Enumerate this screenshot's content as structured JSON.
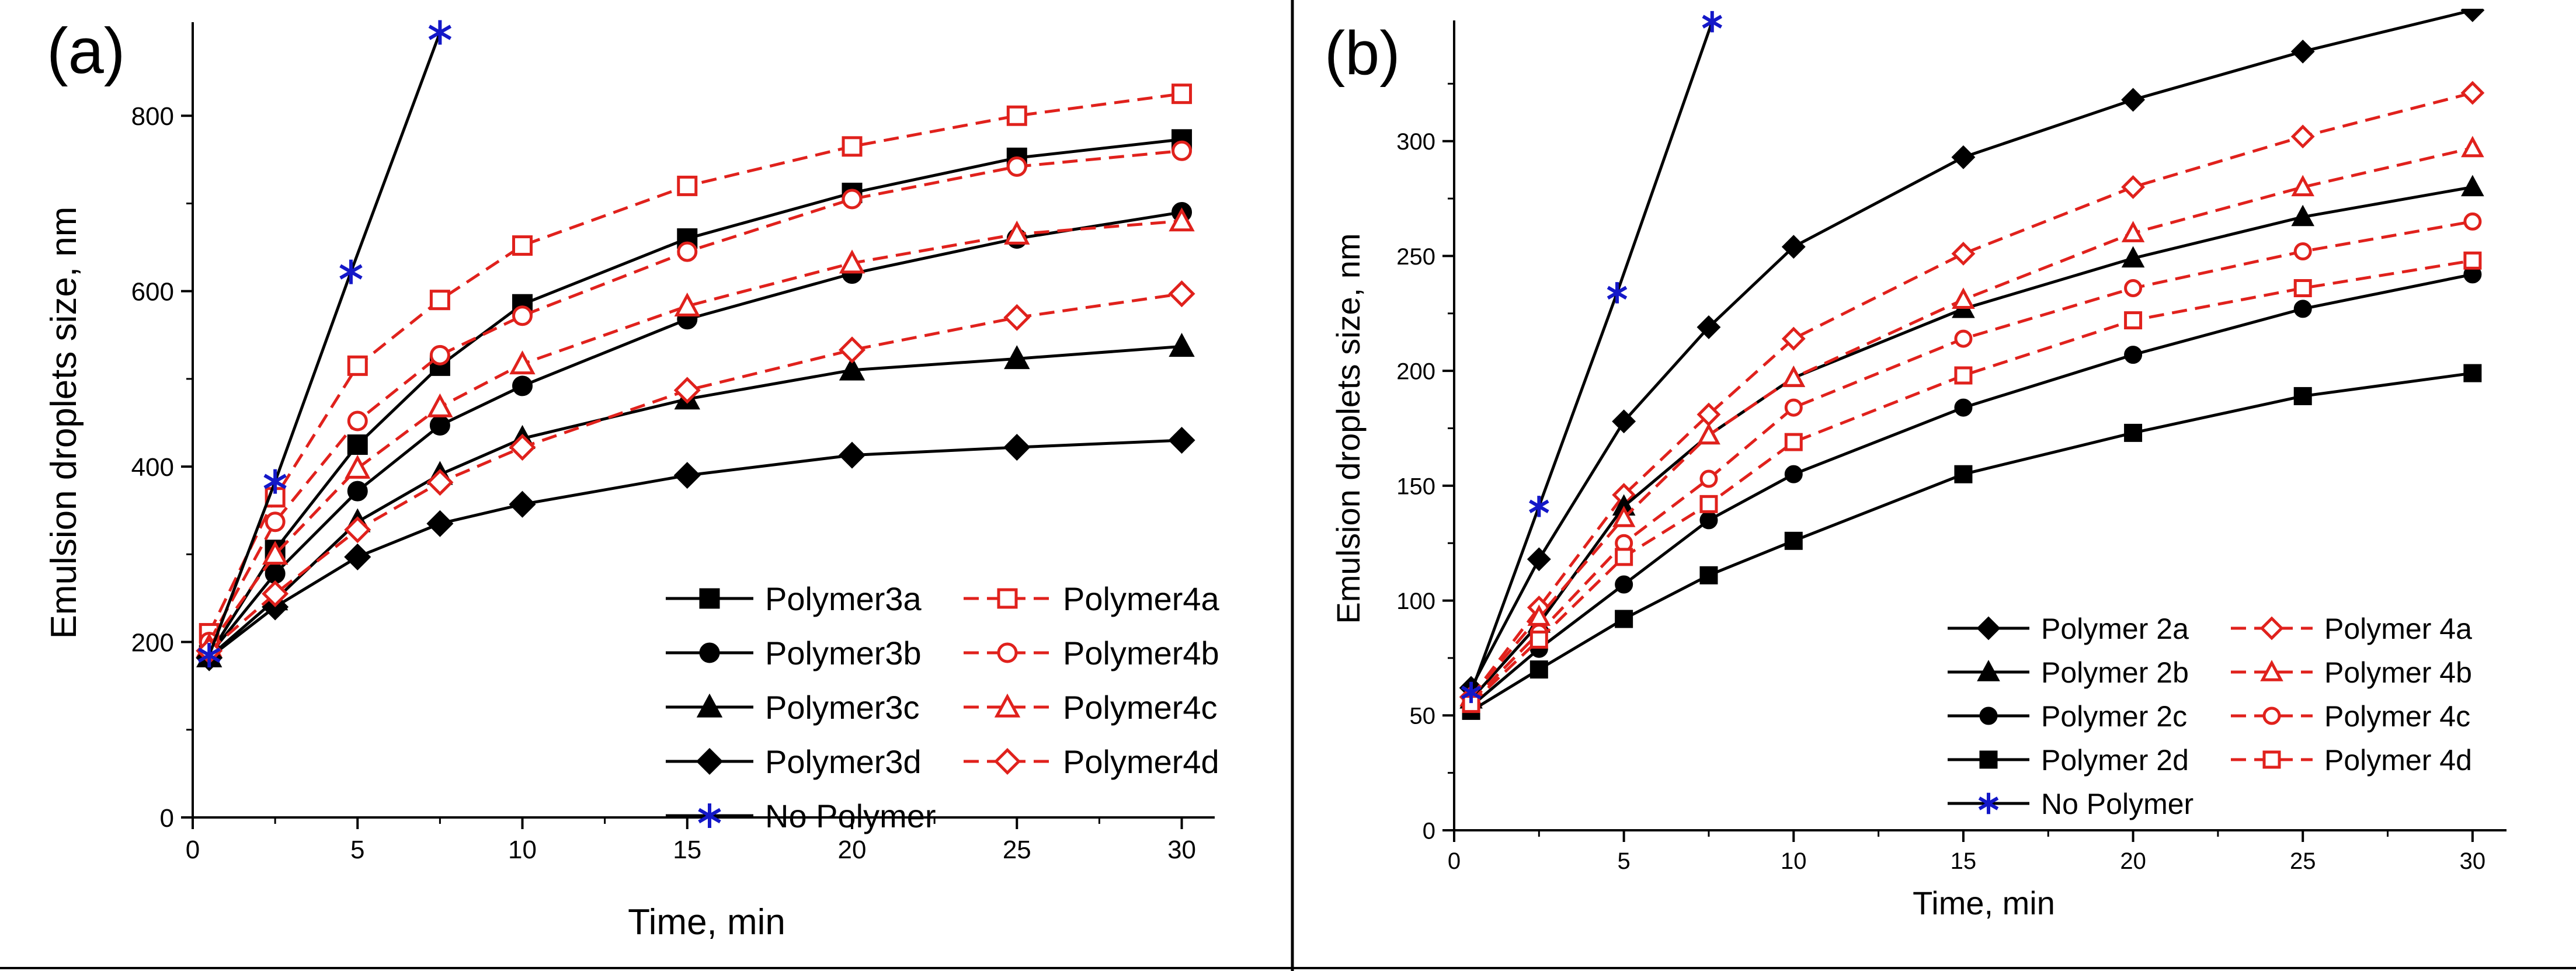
{
  "colors": {
    "black": "#000000",
    "red": "#e0211c",
    "blue": "#1418c8"
  },
  "chart_data": [
    {
      "type": "line",
      "panel_label": "(a)",
      "title": "",
      "xlabel": "Time, min",
      "ylabel": "Emulsion droplets size, nm",
      "xlim": [
        0,
        31
      ],
      "ylim": [
        0,
        900
      ],
      "xticks": [
        0,
        5,
        10,
        15,
        20,
        25,
        30
      ],
      "yticks": [
        0,
        200,
        400,
        600,
        800
      ],
      "legend_position": "bottom-right",
      "series": [
        {
          "name": "Polymer3a",
          "color": "black",
          "dash": false,
          "marker": "square-filled",
          "x": [
            0.5,
            2.5,
            5,
            7.5,
            10,
            15,
            20,
            25,
            30
          ],
          "y": [
            185,
            305,
            425,
            515,
            585,
            660,
            712,
            752,
            773
          ]
        },
        {
          "name": "Polymer4a",
          "color": "red",
          "dash": true,
          "marker": "square-open",
          "x": [
            0.5,
            2.5,
            5,
            7.5,
            10,
            15,
            20,
            25,
            30
          ],
          "y": [
            210,
            365,
            515,
            590,
            652,
            720,
            765,
            800,
            825
          ]
        },
        {
          "name": "Polymer3b",
          "color": "black",
          "dash": false,
          "marker": "circle-filled",
          "x": [
            0.5,
            2.5,
            5,
            7.5,
            10,
            15,
            20,
            25,
            30
          ],
          "y": [
            185,
            278,
            372,
            447,
            492,
            568,
            620,
            660,
            690
          ]
        },
        {
          "name": "Polymer4b",
          "color": "red",
          "dash": true,
          "marker": "circle-open",
          "x": [
            0.5,
            2.5,
            5,
            7.5,
            10,
            15,
            20,
            25,
            30
          ],
          "y": [
            200,
            337,
            452,
            527,
            572,
            645,
            705,
            742,
            760
          ]
        },
        {
          "name": "Polymer3c",
          "color": "black",
          "dash": false,
          "marker": "triangle-filled",
          "x": [
            0.5,
            2.5,
            5,
            7.5,
            10,
            15,
            20,
            25,
            30
          ],
          "y": [
            183,
            248,
            337,
            391,
            432,
            477,
            510,
            523,
            537
          ]
        },
        {
          "name": "Polymer4c",
          "color": "red",
          "dash": true,
          "marker": "triangle-open",
          "x": [
            0.5,
            2.5,
            5,
            7.5,
            10,
            15,
            20,
            25,
            30
          ],
          "y": [
            195,
            300,
            398,
            468,
            517,
            583,
            632,
            665,
            680
          ]
        },
        {
          "name": "Polymer3d",
          "color": "black",
          "dash": false,
          "marker": "diamond-filled",
          "x": [
            0.5,
            2.5,
            5,
            7.5,
            10,
            15,
            20,
            25,
            30
          ],
          "y": [
            182,
            240,
            297,
            335,
            357,
            390,
            413,
            422,
            430
          ]
        },
        {
          "name": "Polymer4d",
          "color": "red",
          "dash": true,
          "marker": "diamond-open",
          "x": [
            0.5,
            2.5,
            5,
            7.5,
            10,
            15,
            20,
            25,
            30
          ],
          "y": [
            190,
            255,
            328,
            382,
            422,
            487,
            533,
            570,
            597
          ]
        },
        {
          "name": "No Polymer",
          "color": "blue",
          "line_color": "black",
          "dash": false,
          "marker": "star",
          "x": [
            0.5,
            2.5,
            4.8,
            7.5
          ],
          "y": [
            185,
            383,
            622,
            895
          ]
        }
      ],
      "legend_order": [
        "Polymer3a",
        "Polymer4a",
        "Polymer3b",
        "Polymer4b",
        "Polymer3c",
        "Polymer4c",
        "Polymer3d",
        "Polymer4d",
        "No Polymer"
      ]
    },
    {
      "type": "line",
      "panel_label": "(b)",
      "title": "",
      "xlabel": "Time, min",
      "ylabel": "Emulsion droplets size, nm",
      "xlim": [
        0,
        31
      ],
      "ylim": [
        0,
        350
      ],
      "xticks": [
        0,
        5,
        10,
        15,
        20,
        25,
        30
      ],
      "yticks": [
        0,
        50,
        100,
        150,
        200,
        250,
        300
      ],
      "legend_position": "bottom-right",
      "series": [
        {
          "name": "Polymer 2a",
          "color": "black",
          "dash": false,
          "marker": "diamond-filled",
          "x": [
            0.5,
            2.5,
            5,
            7.5,
            10,
            15,
            20,
            25,
            30
          ],
          "y": [
            62,
            118,
            178,
            219,
            254,
            293,
            318,
            339,
            357
          ]
        },
        {
          "name": "Polymer 4a",
          "color": "red",
          "dash": true,
          "marker": "diamond-open",
          "x": [
            0.5,
            2.5,
            5,
            7.5,
            10,
            15,
            20,
            25,
            30
          ],
          "y": [
            58,
            97,
            146,
            181,
            214,
            251,
            280,
            302,
            321
          ]
        },
        {
          "name": "Polymer 2b",
          "color": "black",
          "dash": false,
          "marker": "triangle-filled",
          "x": [
            0.5,
            2.5,
            5,
            7.5,
            10,
            15,
            20,
            25,
            30
          ],
          "y": [
            57,
            90,
            141,
            172,
            197,
            227,
            249,
            267,
            280
          ]
        },
        {
          "name": "Polymer 4b",
          "color": "red",
          "dash": true,
          "marker": "triangle-open",
          "x": [
            0.5,
            2.5,
            5,
            7.5,
            10,
            15,
            20,
            25,
            30
          ],
          "y": [
            58,
            93,
            136,
            172,
            197,
            231,
            260,
            280,
            297
          ]
        },
        {
          "name": "Polymer 2c",
          "color": "black",
          "dash": false,
          "marker": "circle-filled",
          "x": [
            0.5,
            2.5,
            5,
            7.5,
            10,
            15,
            20,
            25,
            30
          ],
          "y": [
            54,
            79,
            107,
            135,
            155,
            184,
            207,
            227,
            242
          ]
        },
        {
          "name": "Polymer 4c",
          "color": "red",
          "dash": true,
          "marker": "circle-open",
          "x": [
            0.5,
            2.5,
            5,
            7.5,
            10,
            15,
            20,
            25,
            30
          ],
          "y": [
            56,
            86,
            125,
            153,
            184,
            214,
            236,
            252,
            265
          ]
        },
        {
          "name": "Polymer 2d",
          "color": "black",
          "dash": false,
          "marker": "square-filled",
          "x": [
            0.5,
            2.5,
            5,
            7.5,
            10,
            15,
            20,
            25,
            30
          ],
          "y": [
            52,
            70,
            92,
            111,
            126,
            155,
            173,
            189,
            199
          ]
        },
        {
          "name": "Polymer 4d",
          "color": "red",
          "dash": true,
          "marker": "square-open",
          "x": [
            0.5,
            2.5,
            5,
            7.5,
            10,
            15,
            20,
            25,
            30
          ],
          "y": [
            55,
            83,
            119,
            142,
            169,
            198,
            222,
            236,
            248
          ]
        },
        {
          "name": "No Polymer",
          "color": "blue",
          "line_color": "black",
          "dash": false,
          "marker": "star",
          "x": [
            0.5,
            2.5,
            4.8,
            7.6
          ],
          "y": [
            60,
            141,
            234,
            352
          ]
        }
      ],
      "legend_order": [
        "Polymer 2a",
        "Polymer 4a",
        "Polymer 2b",
        "Polymer 4b",
        "Polymer 2c",
        "Polymer 4c",
        "Polymer 2d",
        "Polymer 4d",
        "No Polymer"
      ]
    }
  ]
}
